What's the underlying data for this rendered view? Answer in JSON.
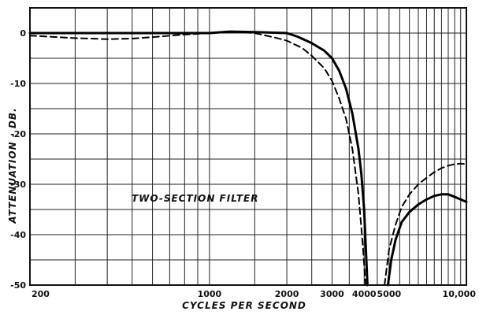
{
  "chart_data": {
    "type": "line",
    "title": "",
    "xlabel": "CYCLES PER SECOND",
    "ylabel": "ATTENUATION - DB.",
    "x_scale": "log",
    "xlim": [
      200,
      10000
    ],
    "ylim": [
      -50,
      5
    ],
    "grid": true,
    "x_tick_labels": [
      {
        "value": 200,
        "label": "200"
      },
      {
        "value": 1000,
        "label": "1000"
      },
      {
        "value": 2000,
        "label": "2000"
      },
      {
        "value": 3000,
        "label": "3000"
      },
      {
        "value": 4000,
        "label": "4000"
      },
      {
        "value": 5000,
        "label": "5000"
      },
      {
        "value": 10000,
        "label": "10,000"
      }
    ],
    "y_tick_labels": [
      {
        "value": 0,
        "label": "0"
      },
      {
        "value": -10,
        "label": "-10"
      },
      {
        "value": -20,
        "label": "-20"
      },
      {
        "value": -30,
        "label": "-30"
      },
      {
        "value": -40,
        "label": "-40"
      },
      {
        "value": -50,
        "label": "-50"
      }
    ],
    "annotation": "TWO-SECTION FILTER",
    "series": [
      {
        "style": "solid",
        "segments": [
          {
            "x": [
              200,
              500,
              1000,
              1200,
              1500,
              2000,
              2200,
              2500,
              2800,
              3000,
              3200,
              3400,
              3600,
              3800,
              3900,
              4000,
              4080,
              4120
            ],
            "y": [
              0,
              0,
              0,
              0.3,
              0.2,
              0,
              -0.7,
              -2,
              -3.5,
              -5,
              -7.5,
              -11,
              -16,
              -23,
              -28,
              -35,
              -45,
              -50
            ]
          },
          {
            "x": [
              4950,
              5100,
              5300,
              5600,
              6000,
              6500,
              7000,
              7500,
              8000,
              8500,
              9000,
              9500,
              10000
            ],
            "y": [
              -50,
              -45,
              -41,
              -37.5,
              -35.5,
              -34,
              -33,
              -32.3,
              -32,
              -32,
              -32.5,
              -33,
              -33.5
            ]
          }
        ]
      },
      {
        "style": "dashed",
        "segments": [
          {
            "x": [
              200,
              300,
              400,
              500,
              600,
              800,
              1000,
              1200,
              1500,
              1800,
              2000,
              2300,
              2500,
              2800,
              3000,
              3200,
              3400,
              3600,
              3800,
              3950,
              4050
            ],
            "y": [
              -0.5,
              -1,
              -1.2,
              -1.1,
              -0.8,
              -0.3,
              0,
              0.3,
              0,
              -0.9,
              -1.5,
              -3,
              -4.5,
              -7,
              -9.5,
              -13,
              -17,
              -23,
              -32,
              -42,
              -50
            ]
          },
          {
            "x": [
              4800,
              5000,
              5300,
              5600,
              6000,
              6500,
              7000,
              7500,
              8000,
              8500,
              9000,
              9500,
              10000
            ],
            "y": [
              -50,
              -43,
              -38,
              -34.5,
              -32,
              -30,
              -28.7,
              -27.6,
              -26.8,
              -26.3,
              -26,
              -25.9,
              -26
            ]
          }
        ]
      }
    ]
  }
}
